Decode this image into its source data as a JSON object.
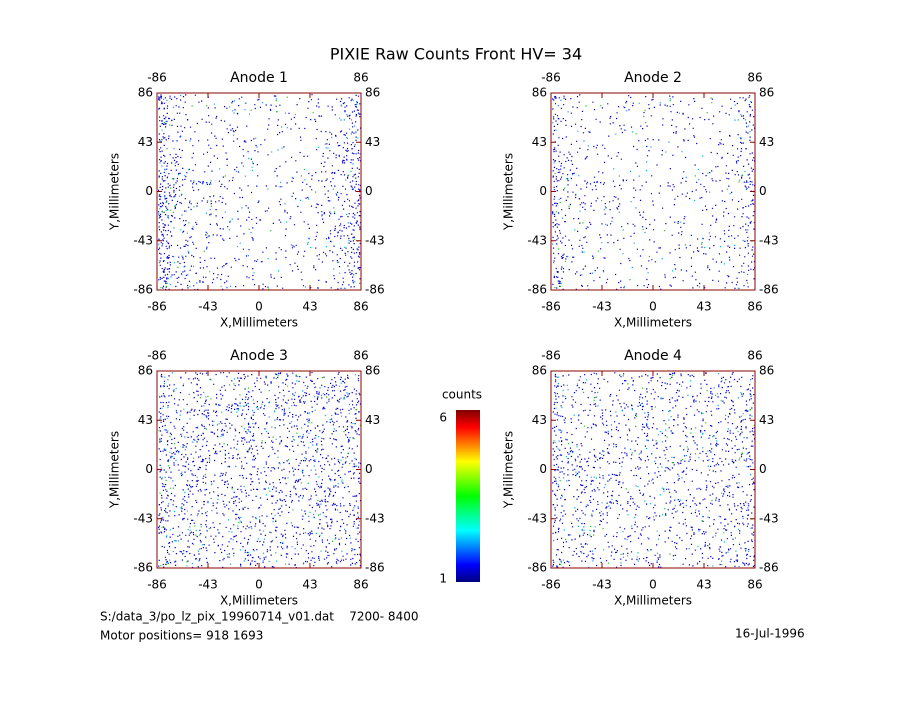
{
  "title": "PIXIE Raw Counts Front HV= 34",
  "chart_data": [
    {
      "type": "heatmap",
      "title": "Anode 1",
      "xlabel": "X,Millimeters",
      "ylabel": "Y,Millimeters",
      "xlim": [
        -86,
        86
      ],
      "ylim": [
        -86,
        86
      ],
      "xticks": [
        -86,
        -43,
        0,
        43,
        86
      ],
      "yticks": [
        -86,
        -43,
        0,
        43,
        86
      ]
    },
    {
      "type": "heatmap",
      "title": "Anode 2",
      "xlabel": "X,Millimeters",
      "ylabel": "Y,Millimeters",
      "xlim": [
        -86,
        86
      ],
      "ylim": [
        -86,
        86
      ],
      "xticks": [
        -86,
        -43,
        0,
        43,
        86
      ],
      "yticks": [
        -86,
        -43,
        0,
        43,
        86
      ]
    },
    {
      "type": "heatmap",
      "title": "Anode 3",
      "xlabel": "X,Millimeters",
      "ylabel": "Y,Millimeters",
      "xlim": [
        -86,
        86
      ],
      "ylim": [
        -86,
        86
      ],
      "xticks": [
        -86,
        -43,
        0,
        43,
        86
      ],
      "yticks": [
        -86,
        -43,
        0,
        43,
        86
      ]
    },
    {
      "type": "heatmap",
      "title": "Anode 4",
      "xlabel": "X,Millimeters",
      "ylabel": "Y,Millimeters",
      "xlim": [
        -86,
        86
      ],
      "ylim": [
        -86,
        86
      ],
      "xticks": [
        -86,
        -43,
        0,
        43,
        86
      ],
      "yticks": [
        -86,
        -43,
        0,
        43,
        86
      ]
    }
  ],
  "colorbar": {
    "label": "counts",
    "lim": [
      1,
      6
    ],
    "ticks": [
      1,
      6
    ],
    "colors": [
      "#00007f",
      "#0000ff",
      "#0080ff",
      "#00ffff",
      "#00ff80",
      "#00ff00",
      "#80ff00",
      "#ffff00",
      "#ff8000",
      "#ff0000",
      "#7f0000"
    ]
  },
  "footer": {
    "file": "S:/data_3/po_lz_pix_19960714_v01.dat    7200- 8400",
    "motor": "Motor positions= 918 1693",
    "date": "16-Jul-1996"
  }
}
